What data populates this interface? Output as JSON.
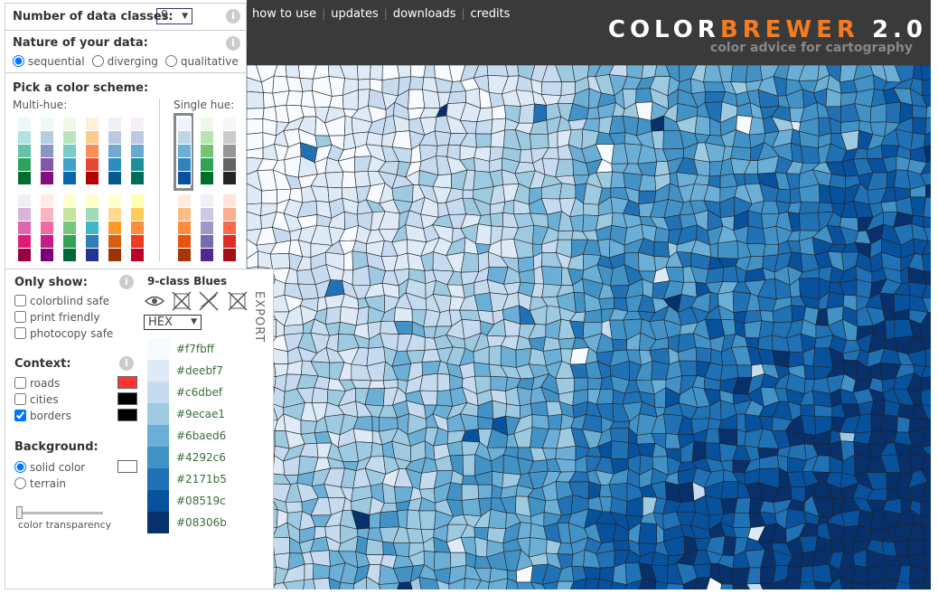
{
  "classes": {
    "label": "Number of data classes:",
    "value": "9"
  },
  "info": "i",
  "nature": {
    "label": "Nature of your data:",
    "options": [
      "sequential",
      "diverging",
      "qualitative"
    ]
  },
  "scheme": {
    "label": "Pick a color scheme:",
    "multi_hue": "Multi-hue:",
    "single_hue": "Single hue:",
    "multi_swatches": [
      [
        "#edf8fb",
        "#b2e2e2",
        "#66c2a4",
        "#2ca25f",
        "#006d2c"
      ],
      [
        "#edf8fb",
        "#b3cde3",
        "#8c96c6",
        "#8856a7",
        "#810f7c"
      ],
      [
        "#f0f9e8",
        "#bae4bc",
        "#7bccc4",
        "#43a2ca",
        "#0868ac"
      ],
      [
        "#fef0d9",
        "#fdcc8a",
        "#fc8d59",
        "#e34a33",
        "#b30000"
      ],
      [
        "#f1eef6",
        "#bdc9e1",
        "#74a9cf",
        "#2b8cbe",
        "#045a8d"
      ],
      [
        "#f6eff7",
        "#bdc9e1",
        "#67a9cf",
        "#1c9099",
        "#016c59"
      ],
      [
        "#f1eef6",
        "#d7b5d8",
        "#df65b0",
        "#dd1c77",
        "#980043"
      ],
      [
        "#feebe2",
        "#fbb4b9",
        "#f768a1",
        "#c51b8a",
        "#7a0177"
      ],
      [
        "#ffffcc",
        "#c2e699",
        "#78c679",
        "#31a354",
        "#006837"
      ],
      [
        "#ffffcc",
        "#a1dab4",
        "#41b6c4",
        "#2c7fb8",
        "#253494"
      ],
      [
        "#ffffd4",
        "#fed98e",
        "#fe9929",
        "#d95f0e",
        "#993404"
      ],
      [
        "#ffffb2",
        "#fecc5c",
        "#fd8d3c",
        "#f03b20",
        "#bd0026"
      ]
    ],
    "single_swatches": [
      [
        "#eff3ff",
        "#bdd7e7",
        "#6baed6",
        "#3182bd",
        "#08519c"
      ],
      [
        "#edf8e9",
        "#bae4b3",
        "#74c476",
        "#31a354",
        "#006d2c"
      ],
      [
        "#f7f7f7",
        "#cccccc",
        "#969696",
        "#636363",
        "#252525"
      ],
      [
        "#feedde",
        "#fdbe85",
        "#fd8d3c",
        "#e6550d",
        "#a63603"
      ],
      [
        "#f2f0f7",
        "#cbc9e2",
        "#9e9ac8",
        "#756bb1",
        "#54278f"
      ],
      [
        "#fee5d9",
        "#fcae91",
        "#fb6a4a",
        "#de2d26",
        "#a50f15"
      ]
    ]
  },
  "nav": [
    "how to use",
    "updates",
    "downloads",
    "credits"
  ],
  "logo": {
    "color": "COLOR",
    "brewer": "BREWER",
    "version": "2.0",
    "tagline": "color advice for cartography"
  },
  "only_show": {
    "label": "Only show:",
    "options": [
      "colorblind safe",
      "print friendly",
      "photocopy safe"
    ]
  },
  "context": {
    "label": "Context:",
    "options": [
      "roads",
      "cities",
      "borders"
    ]
  },
  "background": {
    "label": "Background:",
    "options": [
      "solid color",
      "terrain"
    ],
    "slider": "color transparency"
  },
  "palette": {
    "title": "9-class Blues",
    "format": "HEX",
    "export": "EXPORT",
    "colors": [
      "#f7fbff",
      "#deebf7",
      "#c6dbef",
      "#9ecae1",
      "#6baed6",
      "#4292c6",
      "#2171b5",
      "#08519c",
      "#08306b"
    ]
  }
}
